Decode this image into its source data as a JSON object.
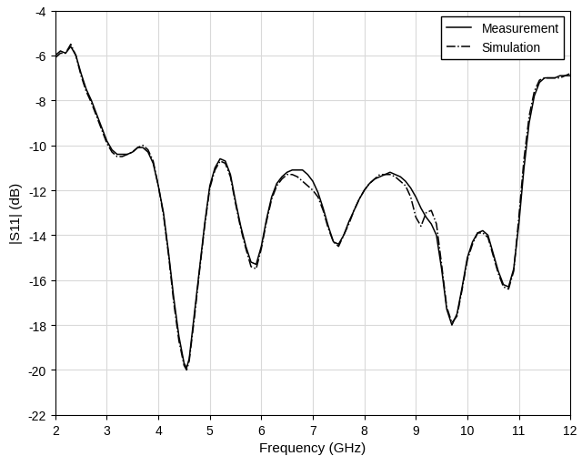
{
  "chart_data": {
    "type": "line",
    "x_label": "Frequency (GHz)",
    "y_label": "|S11| (dB)",
    "x": [
      2.0,
      2.1,
      2.2,
      2.3,
      2.4,
      2.5,
      2.6,
      2.7,
      2.8,
      2.9,
      3.0,
      3.1,
      3.2,
      3.3,
      3.4,
      3.5,
      3.6,
      3.7,
      3.8,
      3.9,
      4.0,
      4.1,
      4.2,
      4.3,
      4.4,
      4.5,
      4.55,
      4.6,
      4.7,
      4.8,
      4.9,
      5.0,
      5.1,
      5.2,
      5.3,
      5.4,
      5.5,
      5.6,
      5.7,
      5.8,
      5.9,
      6.0,
      6.1,
      6.2,
      6.3,
      6.4,
      6.5,
      6.6,
      6.7,
      6.8,
      6.9,
      7.0,
      7.1,
      7.2,
      7.3,
      7.4,
      7.5,
      7.6,
      7.7,
      7.8,
      7.9,
      8.0,
      8.1,
      8.2,
      8.3,
      8.4,
      8.5,
      8.6,
      8.7,
      8.8,
      8.9,
      9.0,
      9.1,
      9.2,
      9.3,
      9.4,
      9.5,
      9.6,
      9.7,
      9.8,
      9.9,
      10.0,
      10.1,
      10.2,
      10.3,
      10.4,
      10.5,
      10.6,
      10.7,
      10.8,
      10.9,
      11.0,
      11.1,
      11.2,
      11.3,
      11.4,
      11.5,
      11.6,
      11.7,
      11.8,
      11.9,
      12.0
    ],
    "series": [
      {
        "name": "Measurement",
        "color": "#000000",
        "line_style": "solid",
        "values": [
          -6.0,
          -5.8,
          -5.9,
          -5.6,
          -6.0,
          -6.8,
          -7.5,
          -8.0,
          -8.6,
          -9.2,
          -9.8,
          -10.2,
          -10.4,
          -10.4,
          -10.4,
          -10.3,
          -10.1,
          -10.1,
          -10.3,
          -10.8,
          -11.8,
          -13.0,
          -14.8,
          -16.8,
          -18.5,
          -19.7,
          -19.9,
          -19.5,
          -17.5,
          -15.5,
          -13.5,
          -11.8,
          -11.0,
          -10.6,
          -10.7,
          -11.3,
          -12.5,
          -13.6,
          -14.5,
          -15.2,
          -15.3,
          -14.5,
          -13.3,
          -12.3,
          -11.7,
          -11.4,
          -11.2,
          -11.1,
          -11.1,
          -11.1,
          -11.3,
          -11.6,
          -12.1,
          -12.8,
          -13.6,
          -14.3,
          -14.4,
          -14.0,
          -13.4,
          -12.9,
          -12.4,
          -12.0,
          -11.7,
          -11.5,
          -11.4,
          -11.3,
          -11.2,
          -11.3,
          -11.4,
          -11.6,
          -11.9,
          -12.3,
          -12.8,
          -13.2,
          -13.5,
          -14.0,
          -15.5,
          -17.3,
          -18.0,
          -17.5,
          -16.3,
          -15.0,
          -14.3,
          -13.9,
          -13.8,
          -14.0,
          -14.8,
          -15.6,
          -16.2,
          -16.3,
          -15.5,
          -13.5,
          -11.0,
          -9.0,
          -7.8,
          -7.2,
          -7.0,
          -7.0,
          -7.0,
          -6.9,
          -6.9,
          -6.9
        ]
      },
      {
        "name": "Simulation",
        "color": "#000000",
        "line_style": "dashdot",
        "values": [
          -6.1,
          -5.9,
          -5.9,
          -5.5,
          -6.0,
          -6.9,
          -7.6,
          -8.1,
          -8.7,
          -9.3,
          -9.9,
          -10.3,
          -10.5,
          -10.5,
          -10.4,
          -10.3,
          -10.1,
          -10.0,
          -10.2,
          -10.7,
          -11.8,
          -13.1,
          -14.9,
          -17.0,
          -18.7,
          -19.8,
          -20.0,
          -19.6,
          -17.7,
          -15.6,
          -13.6,
          -11.9,
          -11.1,
          -10.7,
          -10.8,
          -11.4,
          -12.6,
          -13.7,
          -14.6,
          -15.4,
          -15.5,
          -14.6,
          -13.4,
          -12.4,
          -11.8,
          -11.5,
          -11.3,
          -11.3,
          -11.4,
          -11.6,
          -11.8,
          -12.0,
          -12.3,
          -12.9,
          -13.7,
          -14.3,
          -14.5,
          -14.0,
          -13.5,
          -12.9,
          -12.4,
          -12.0,
          -11.7,
          -11.5,
          -11.3,
          -11.3,
          -11.3,
          -11.4,
          -11.6,
          -11.8,
          -12.3,
          -13.2,
          -13.6,
          -13.0,
          -12.9,
          -13.5,
          -15.3,
          -17.2,
          -17.9,
          -17.6,
          -16.4,
          -15.1,
          -14.4,
          -13.9,
          -13.9,
          -14.1,
          -14.9,
          -15.7,
          -16.3,
          -16.4,
          -15.6,
          -13.2,
          -10.6,
          -8.7,
          -7.6,
          -7.1,
          -7.0,
          -7.0,
          -7.0,
          -7.0,
          -6.9,
          -6.8
        ]
      }
    ],
    "xlim": [
      2,
      12
    ],
    "xticks": [
      2,
      3,
      4,
      5,
      6,
      7,
      8,
      9,
      10,
      11,
      12
    ],
    "ylim": [
      -22,
      -4
    ],
    "yticks": [
      -22,
      -20,
      -18,
      -16,
      -14,
      -12,
      -10,
      -8,
      -6,
      -4
    ],
    "grid": true,
    "legend": "upper right"
  }
}
